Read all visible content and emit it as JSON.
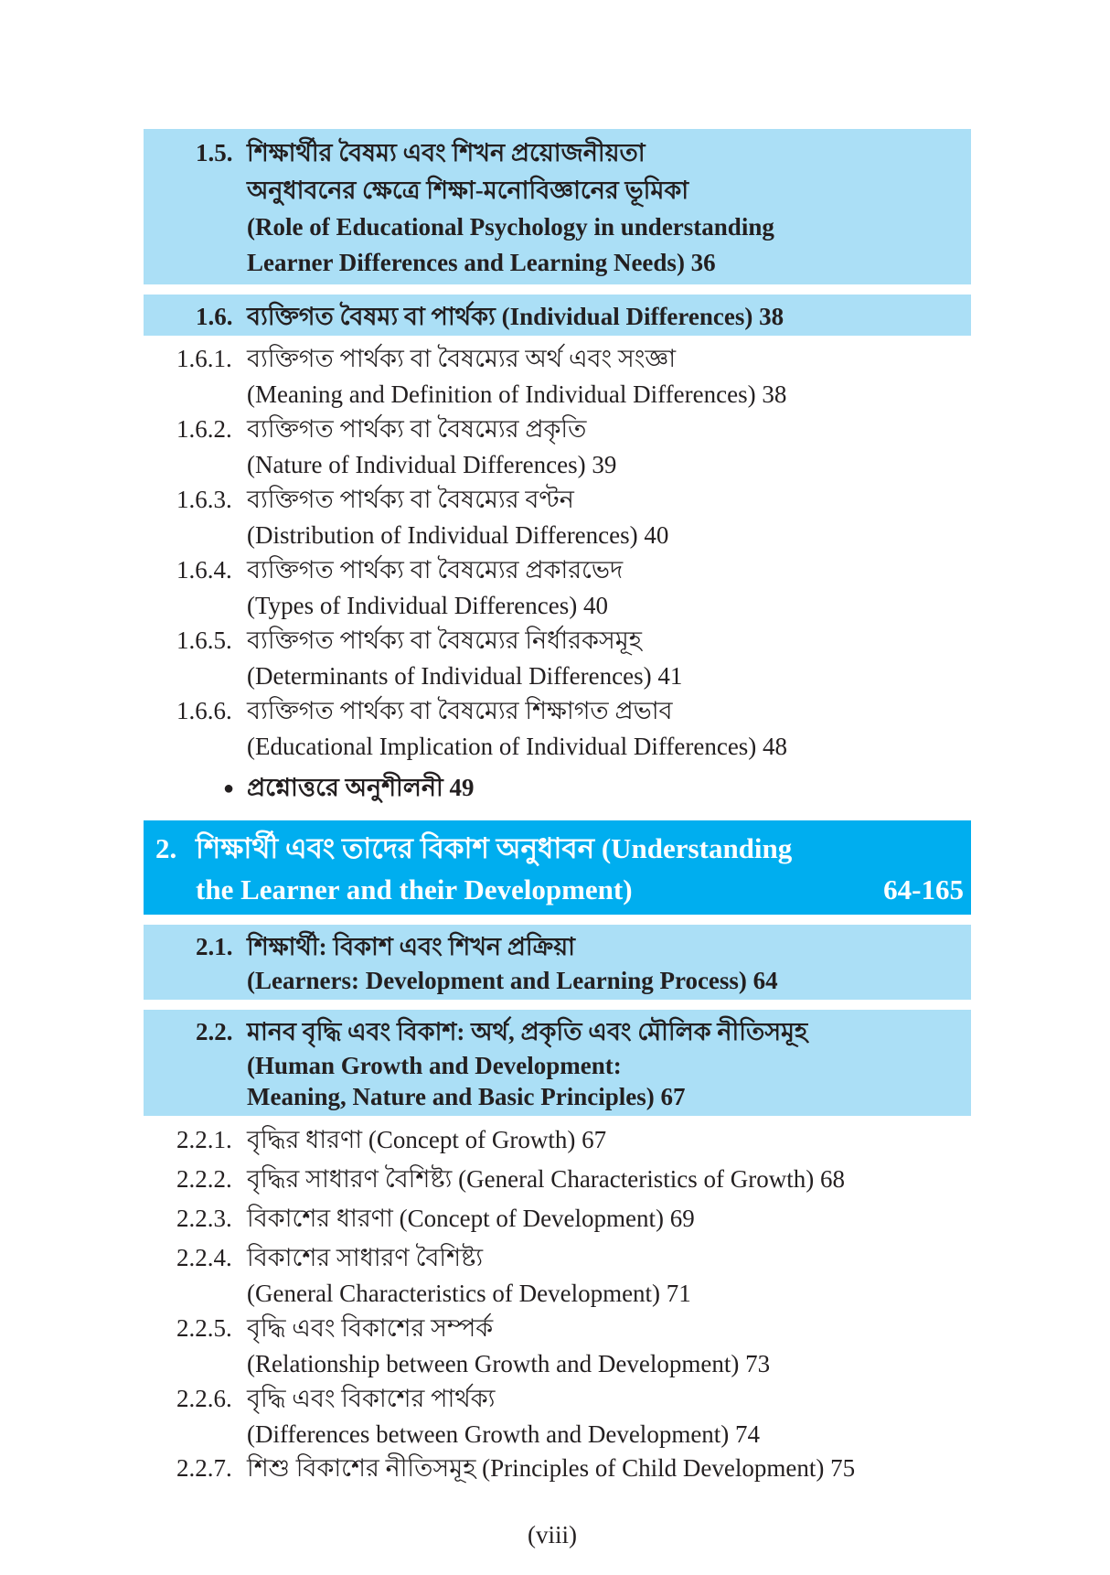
{
  "colors": {
    "section_box": "#abdff6",
    "chapter_box": "#00aeef",
    "chapter_text": "#ffffff"
  },
  "s15": {
    "num": "1.5.",
    "bn1": "শিক্ষার্থীর বৈষম্য এবং শিখন প্রয়োজনীয়তা",
    "bn2": "অনুধাবনের ক্ষেত্রে শিক্ষা-মনোবিজ্ঞানের ভূমিকা",
    "en1": "(Role of Educational Psychology in understanding",
    "en2": "Learner Differences and Learning Needs) 36"
  },
  "s16": {
    "num": "1.6.",
    "text": "ব্যক্তিগত বৈষম্য বা পার্থক্য (Individual Differences) 38"
  },
  "sub16": [
    {
      "num": "1.6.1.",
      "bn": "ব্যক্তিগত পার্থক্য বা বৈষম্যের অর্থ এবং সংজ্ঞা",
      "en": "(Meaning and Definition of Individual Differences) 38"
    },
    {
      "num": "1.6.2.",
      "bn": "ব্যক্তিগত পার্থক্য বা বৈষম্যের প্রকৃতি",
      "en": "(Nature of Individual Differences) 39"
    },
    {
      "num": "1.6.3.",
      "bn": "ব্যক্তিগত পার্থক্য বা বৈষম্যের বণ্টন",
      "en": "(Distribution of Individual Differences) 40"
    },
    {
      "num": "1.6.4.",
      "bn": "ব্যক্তিগত পার্থক্য বা বৈষম্যের প্রকারভেদ",
      "en": "(Types of Individual Differences) 40"
    },
    {
      "num": "1.6.5.",
      "bn": "ব্যক্তিগত পার্থক্য বা বৈষম্যের নির্ধারকসমূহ",
      "en": "(Determinants of Individual Differences) 41"
    },
    {
      "num": "1.6.6.",
      "bn": "ব্যক্তিগত পার্থক্য বা বৈষম্যের শিক্ষাগত প্রভাব",
      "en": "(Educational Implication of Individual Differences) 48"
    }
  ],
  "exercise": {
    "bullet": "●",
    "text": "প্রশ্নোত্তরে অনুশীলনী 49"
  },
  "ch2": {
    "num": "2.",
    "line1": "শিক্ষার্থী এবং তাদের বিকাশ অনুধাবন (Understanding",
    "line2": "the Learner and their Development)",
    "pages": "64-165"
  },
  "s21": {
    "num": "2.1.",
    "bn": "শিক্ষার্থী: বিকাশ এবং শিখন প্রক্রিয়া",
    "en": "(Learners: Development and Learning Process) 64"
  },
  "s22": {
    "num": "2.2.",
    "bn": "মানব বৃদ্ধি এবং বিকাশ: অর্থ, প্রকৃতি এবং মৌলিক নীতিসমূহ",
    "en1": "(Human Growth and Development:",
    "en2": "Meaning, Nature and Basic Principles) 67"
  },
  "sub22": [
    {
      "num": "2.2.1.",
      "text": "বৃদ্ধির ধারণা (Concept of Growth) 67"
    },
    {
      "num": "2.2.2.",
      "text": "বৃদ্ধির সাধারণ বৈশিষ্ট্য (General Characteristics of Growth) 68"
    },
    {
      "num": "2.2.3.",
      "text": "বিকাশের ধারণা (Concept of Development) 69"
    },
    {
      "num": "2.2.4.",
      "text": "বিকাশের সাধারণ বৈশিষ্ট্য",
      "text2": "(General Characteristics of Development) 71"
    },
    {
      "num": "2.2.5.",
      "text": "বৃদ্ধি এবং বিকাশের সম্পর্ক",
      "text2": "(Relationship between Growth and Development) 73"
    },
    {
      "num": "2.2.6.",
      "text": "বৃদ্ধি এবং বিকাশের পার্থক্য",
      "text2": "(Differences between Growth and Development) 74"
    },
    {
      "num": "2.2.7.",
      "text": "শিশু বিকাশের নীতিসমূহ (Principles of Child Development) 75"
    }
  ],
  "page_number": "(viii)"
}
